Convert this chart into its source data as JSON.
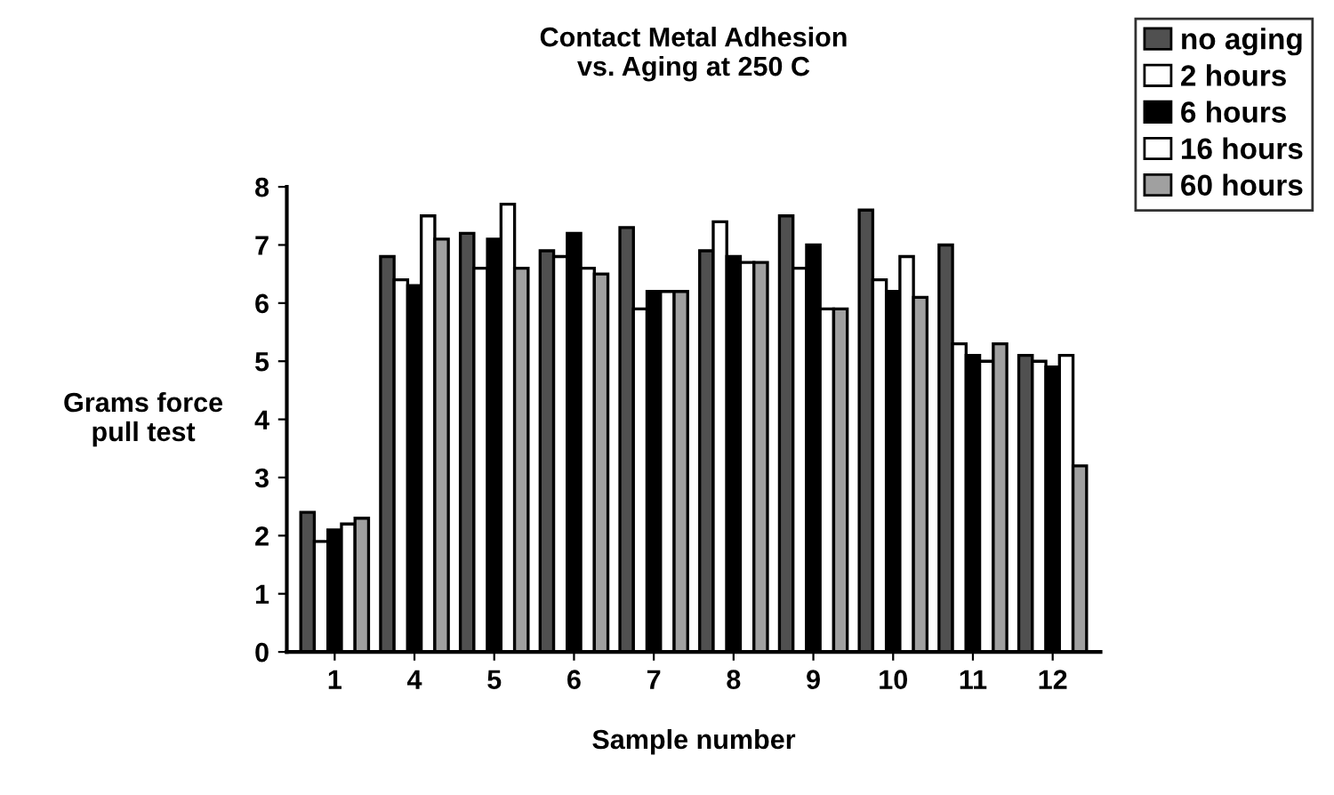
{
  "chart_data": {
    "type": "bar",
    "title": "Contact Metal Adhesion\nvs. Aging at 250 C",
    "xlabel": "Sample number",
    "ylabel": "Grams force\npull test",
    "categories": [
      "1",
      "4",
      "5",
      "6",
      "7",
      "8",
      "9",
      "10",
      "11",
      "12"
    ],
    "series": [
      {
        "name": "no aging",
        "color": "#505050",
        "values": [
          2.4,
          6.8,
          7.2,
          6.9,
          7.3,
          6.9,
          7.5,
          7.6,
          7.0,
          5.1
        ]
      },
      {
        "name": "2 hours",
        "color": "#ffffff",
        "values": [
          1.9,
          6.4,
          6.6,
          6.8,
          5.9,
          7.4,
          6.6,
          6.4,
          5.3,
          5.0
        ]
      },
      {
        "name": "6 hours",
        "color": "#000000",
        "values": [
          2.1,
          6.3,
          7.1,
          7.2,
          6.2,
          6.8,
          7.0,
          6.2,
          5.1,
          4.9
        ]
      },
      {
        "name": "16 hours",
        "color": "#ffffff",
        "values": [
          2.2,
          7.5,
          7.7,
          6.6,
          6.2,
          6.7,
          5.9,
          6.8,
          5.0,
          5.1
        ]
      },
      {
        "name": "60 hours",
        "color": "#a0a0a0",
        "values": [
          2.3,
          7.1,
          6.6,
          6.5,
          6.2,
          6.7,
          5.9,
          6.1,
          5.3,
          3.2
        ]
      }
    ],
    "ylim": [
      0,
      8
    ],
    "yticks": [
      0,
      1,
      2,
      3,
      4,
      5,
      6,
      7,
      8
    ],
    "grid": false,
    "legend": "top right"
  }
}
